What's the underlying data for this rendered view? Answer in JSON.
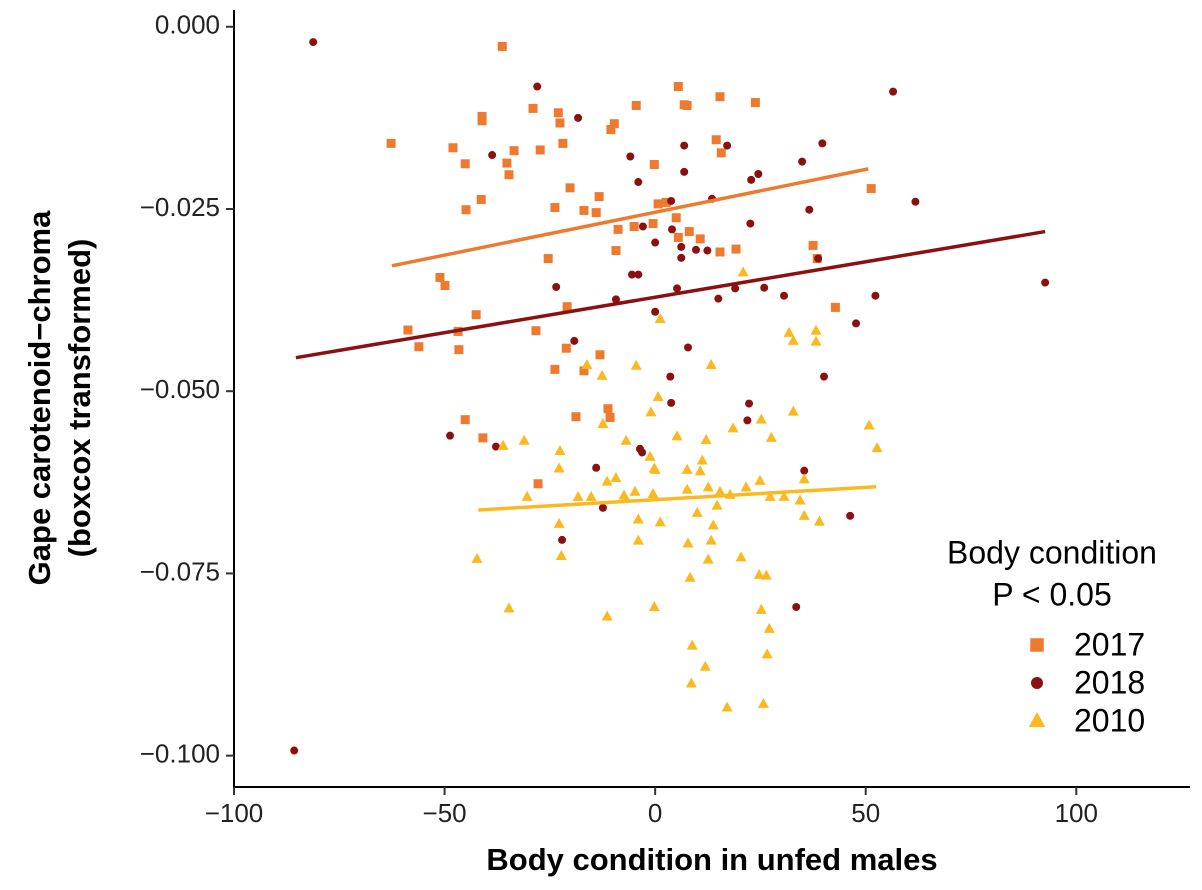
{
  "chart_data": {
    "type": "scatter",
    "x_label": "Body condition in unfed males",
    "y_label": [
      "Gape carotenoid−chroma",
      "(boxcox transformed)"
    ],
    "legend_title": [
      "Body condition",
      "P < 0.05"
    ],
    "legend": "right",
    "xlim": [
      -100,
      127
    ],
    "ylim": [
      -0.1043,
      0.0023
    ],
    "xticks": [
      {
        "value": -100,
        "label": "−100"
      },
      {
        "value": -50,
        "label": "−50"
      },
      0,
      50,
      100
    ],
    "yticks": [
      {
        "value": 0,
        "label": "0.000"
      },
      {
        "value": -0.025,
        "label": "−0.025"
      },
      {
        "value": -0.05,
        "label": "−0.050"
      },
      {
        "value": -0.075,
        "label": "−0.075"
      },
      {
        "value": -0.1,
        "label": "−0.100"
      }
    ],
    "series": [
      {
        "name": "2017",
        "color": "#ee7a30",
        "shape": "square",
        "x": [
          -36.3,
          -62.7,
          -48.0,
          -41.1,
          -41.1,
          -29.0,
          -23.0,
          -22.6,
          -33.5,
          -27.3,
          -21.9,
          -10.5,
          -9.7,
          -4.5,
          5.5,
          6.9,
          7.6,
          15.4,
          23.8,
          14.5,
          15.7,
          -0.2,
          -0.5,
          0.7,
          2.6,
          5.0,
          8.1,
          5.5,
          10.7,
          15.4,
          19.2,
          37.5,
          38.5,
          51.3,
          -35.2,
          -34.7,
          -45.1,
          -44.9,
          -41.3,
          -23.8,
          -20.2,
          -16.9,
          -14.0,
          -13.3,
          -8.8,
          -9.3,
          -25.4,
          -28.3,
          -20.9,
          -51.1,
          -49.9,
          -58.7,
          -56.1,
          -46.8,
          -46.6,
          -42.5,
          -21.1,
          -23.8,
          -16.9,
          -13.1,
          -18.8,
          -11.2,
          -10.7,
          -45.1,
          -40.9,
          -27.8,
          42.8,
          -5.0
        ],
        "y": [
          -0.0027,
          -0.016,
          -0.0166,
          -0.0123,
          -0.0129,
          -0.0112,
          -0.0118,
          -0.0132,
          -0.017,
          -0.0169,
          -0.016,
          -0.0141,
          -0.0133,
          -0.0108,
          -0.0082,
          -0.0107,
          -0.0108,
          -0.0096,
          -0.0104,
          -0.0155,
          -0.0173,
          -0.0189,
          -0.027,
          -0.0243,
          -0.0241,
          -0.0262,
          -0.0281,
          -0.0289,
          -0.0291,
          -0.0309,
          -0.0305,
          -0.03,
          -0.0318,
          -0.0222,
          -0.0187,
          -0.0203,
          -0.0188,
          -0.0251,
          -0.0237,
          -0.0248,
          -0.0221,
          -0.0252,
          -0.0255,
          -0.0233,
          -0.0278,
          -0.0307,
          -0.0318,
          -0.0417,
          -0.0384,
          -0.0344,
          -0.0355,
          -0.0416,
          -0.0439,
          -0.0418,
          -0.0443,
          -0.0395,
          -0.0441,
          -0.047,
          -0.0472,
          -0.045,
          -0.0535,
          -0.0524,
          -0.0536,
          -0.0539,
          -0.0564,
          -0.0627,
          -0.0385,
          -0.0274
        ],
        "fit": {
          "x": [
            -62.5,
            50.6
          ],
          "y": [
            -0.0328,
            -0.0195
          ]
        }
      },
      {
        "name": "2018",
        "color": "#8b1010",
        "shape": "circle",
        "x": [
          -81.2,
          56.5,
          -28.0,
          -18.3,
          -38.7,
          -5.9,
          6.9,
          17.1,
          39.7,
          34.9,
          -4.0,
          6.9,
          24.5,
          22.8,
          3.8,
          13.5,
          61.8,
          36.6,
          22.6,
          -2.9,
          0,
          4.0,
          6.2,
          9.7,
          12.4,
          6.2,
          38.7,
          -5.5,
          -4.0,
          -23.5,
          5.2,
          19.0,
          25.9,
          30.6,
          52.3,
          92.6,
          15.0,
          -9.3,
          -19.2,
          0,
          7.8,
          47.7,
          40.1,
          3.6,
          3.8,
          22.3,
          21.9,
          -48.7,
          -37.8,
          -3.6,
          -3.1,
          -14.0,
          35.4,
          -12.4,
          46.3,
          -22.1,
          33.5,
          -85.7
        ],
        "y": [
          -0.0021,
          -0.0089,
          -0.0082,
          -0.0125,
          -0.0176,
          -0.0178,
          -0.0163,
          -0.0163,
          -0.016,
          -0.0185,
          -0.0213,
          -0.0199,
          -0.0202,
          -0.021,
          -0.0239,
          -0.0236,
          -0.024,
          -0.0251,
          -0.027,
          -0.0274,
          -0.0296,
          -0.0278,
          -0.0302,
          -0.0306,
          -0.0307,
          -0.0317,
          -0.0318,
          -0.034,
          -0.034,
          -0.0357,
          -0.0359,
          -0.0359,
          -0.0358,
          -0.0369,
          -0.0369,
          -0.0351,
          -0.0373,
          -0.0374,
          -0.0431,
          -0.0391,
          -0.044,
          -0.0407,
          -0.048,
          -0.048,
          -0.0516,
          -0.0517,
          -0.054,
          -0.0561,
          -0.0576,
          -0.0579,
          -0.0584,
          -0.0605,
          -0.0609,
          -0.066,
          -0.0671,
          -0.0704,
          -0.0796,
          -0.0993
        ],
        "fit": {
          "x": [
            -85.3,
            92.6
          ],
          "y": [
            -0.0454,
            -0.0281
          ]
        }
      },
      {
        "name": "2010",
        "color": "#fbb921",
        "shape": "triangle",
        "x": [
          20.9,
          1.2,
          38.2,
          31.8,
          32.8,
          38.2,
          -4.5,
          13.3,
          -16.2,
          -12.6,
          0.7,
          32.8,
          -1.0,
          25.2,
          -12.4,
          18.5,
          50.8,
          -6.9,
          5.2,
          12.1,
          27.6,
          -31.1,
          -36.1,
          52.7,
          -22.6,
          -1.2,
          11.2,
          -22.8,
          -0.2,
          -9.3,
          0,
          7.6,
          10.7,
          -11.4,
          24.9,
          35.4,
          -4.8,
          -0.5,
          7.6,
          12.6,
          15.4,
          17.8,
          21.6,
          27.3,
          30.6,
          -15.2,
          -7.4,
          -18.3,
          -30.4,
          14.7,
          34.4,
          10.0,
          35.4,
          39.0,
          -22.8,
          -4.0,
          1.2,
          13.8,
          -4.0,
          13.3,
          7.8,
          -22.3,
          -42.3,
          20.4,
          12.6,
          8.3,
          24.7,
          26.4,
          -34.7,
          -0.2,
          25.2,
          27.1,
          -11.4,
          8.8,
          11.9,
          26.6,
          8.6,
          17.1,
          25.7
        ],
        "y": [
          -0.0337,
          -0.0401,
          -0.0417,
          -0.042,
          -0.0431,
          -0.0432,
          -0.0465,
          -0.0464,
          -0.0464,
          -0.0479,
          -0.0508,
          -0.0528,
          -0.0529,
          -0.0539,
          -0.0545,
          -0.0551,
          -0.0547,
          -0.0568,
          -0.0562,
          -0.0567,
          -0.0564,
          -0.0568,
          -0.0575,
          -0.0578,
          -0.0582,
          -0.059,
          -0.0595,
          -0.0606,
          -0.0606,
          -0.0619,
          -0.0608,
          -0.0608,
          -0.061,
          -0.0624,
          -0.0623,
          -0.0621,
          -0.0638,
          -0.0641,
          -0.0635,
          -0.0632,
          -0.0638,
          -0.0642,
          -0.0632,
          -0.0645,
          -0.0645,
          -0.0645,
          -0.0643,
          -0.0645,
          -0.0645,
          -0.0657,
          -0.065,
          -0.0667,
          -0.0671,
          -0.0679,
          -0.0682,
          -0.0676,
          -0.068,
          -0.0684,
          -0.0705,
          -0.0705,
          -0.0709,
          -0.0726,
          -0.073,
          -0.0728,
          -0.0731,
          -0.0756,
          -0.0752,
          -0.0753,
          -0.0798,
          -0.0796,
          -0.08,
          -0.0826,
          -0.0809,
          -0.0849,
          -0.0878,
          -0.0861,
          -0.0901,
          -0.0934,
          -0.0929
        ],
        "fit": {
          "x": [
            -42,
            52.5
          ],
          "y": [
            -0.0663,
            -0.0631
          ]
        }
      }
    ]
  }
}
